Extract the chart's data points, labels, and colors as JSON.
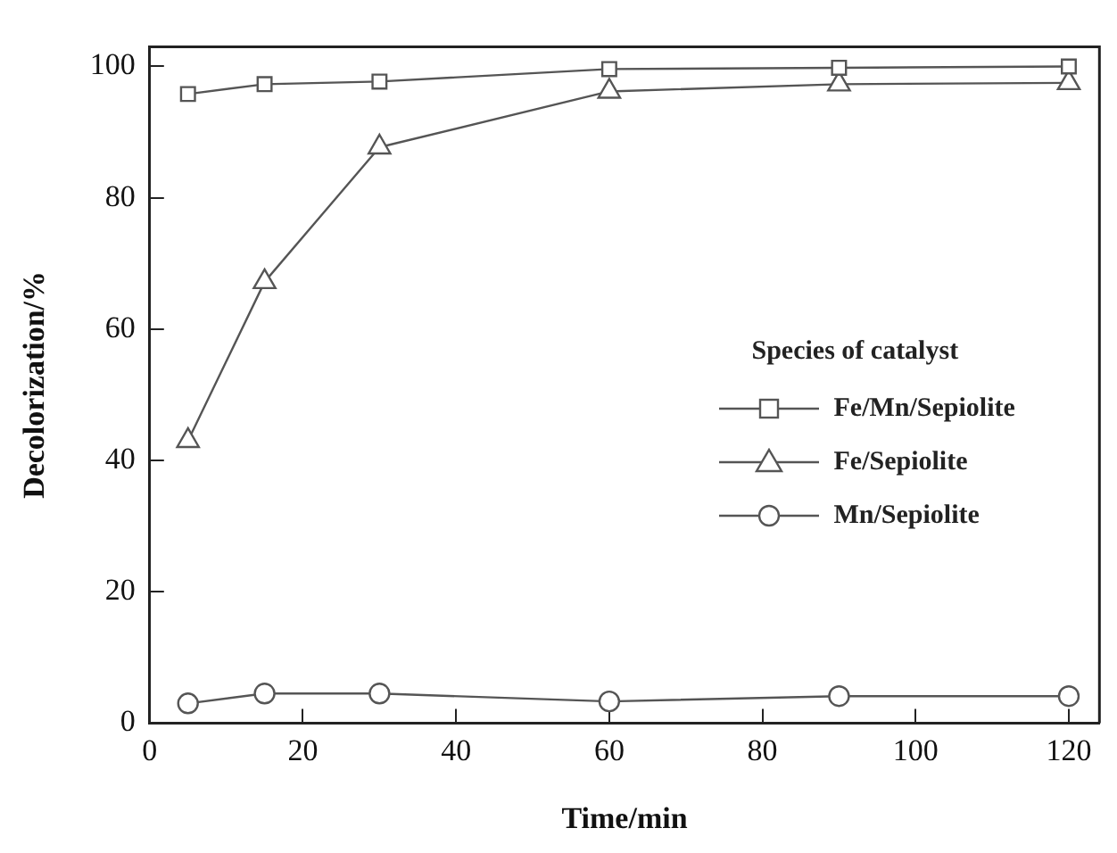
{
  "chart_data": {
    "type": "line",
    "xlabel": "Time/min",
    "ylabel": "Decolorization/%",
    "legend_title": "Species of catalyst",
    "legend": "right",
    "grid": false,
    "x": [
      5,
      15,
      30,
      60,
      90,
      120
    ],
    "xlim": [
      0,
      124
    ],
    "xticks": [
      0,
      20,
      40,
      60,
      80,
      100,
      120
    ],
    "ylim": [
      0,
      103
    ],
    "yticks": [
      0,
      20,
      40,
      60,
      80,
      100
    ],
    "series": [
      {
        "name": "Fe/Mn/Sepiolite",
        "color": "#555555",
        "marker": "square",
        "values": [
          95.8,
          97.3,
          97.7,
          99.6,
          99.8,
          100
        ]
      },
      {
        "name": "Fe/Sepiolite",
        "color": "#555555",
        "marker": "triangle",
        "values": [
          43,
          67.2,
          87.7,
          96.2,
          97.3,
          97.5
        ]
      },
      {
        "name": "Mn/Sepiolite",
        "color": "#555555",
        "marker": "circle",
        "values": [
          3,
          4.5,
          4.5,
          3.3,
          4.1,
          4.1
        ]
      }
    ]
  }
}
